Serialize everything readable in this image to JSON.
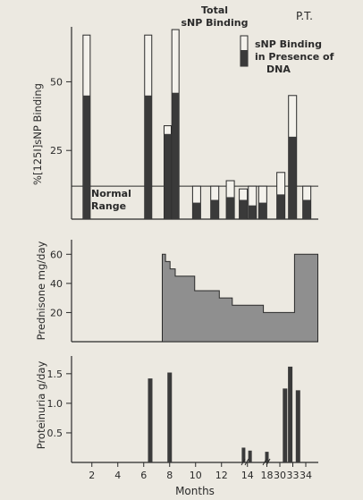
{
  "chart_data": [
    {
      "type": "bar",
      "corner_label": "P.T.",
      "ylabel": "%[125I]sNP Binding",
      "yticks": [
        25,
        50
      ],
      "ylim": [
        0,
        70
      ],
      "normal_range_label": "Normal Range",
      "normal_range_upper": 12,
      "legend": {
        "total": "Total sNP Binding",
        "dna": "sNP Binding in Presence of DNA"
      },
      "series": [
        {
          "name": "Total sNP Binding",
          "values": [
            67,
            67,
            34,
            69,
            12,
            12,
            14,
            11,
            12,
            12,
            17,
            45,
            12
          ]
        },
        {
          "name": "sNP Binding in Presence of DNA",
          "values": [
            45,
            45,
            31,
            46,
            6,
            7,
            8,
            7,
            5,
            6,
            9,
            30,
            7
          ]
        }
      ],
      "x": [
        0.75,
        5.5,
        7.0,
        7.6,
        9.2,
        10.6,
        11.8,
        12.8,
        13.5,
        14.3,
        15.7,
        16.6,
        17.7
      ]
    },
    {
      "type": "area",
      "ylabel": "Prednisone mg/day",
      "yticks": [
        20,
        40,
        60
      ],
      "ylim": [
        0,
        70
      ],
      "x": [
        7.0,
        7.25,
        7.6,
        8.0,
        8.5,
        9.5,
        10.9,
        11.4,
        12.4,
        13.3,
        14.6,
        14.8,
        16.8,
        17.2,
        18.3
      ],
      "values": [
        60,
        55,
        50,
        45,
        45,
        35,
        35,
        30,
        25,
        25,
        25,
        20,
        20,
        60,
        60
      ]
    },
    {
      "type": "bar",
      "ylabel": "Proteinuria g/day",
      "xlabel": "Months",
      "xticks": [
        "2",
        "4",
        "6",
        "8",
        "10",
        "12",
        "14",
        "18",
        "30",
        "33",
        "34"
      ],
      "yticks": [
        "0.5",
        "1.0",
        "1.5"
      ],
      "ylim": [
        0,
        1.8
      ],
      "x": [
        6.0,
        7.5,
        13.2,
        13.7,
        15.0,
        16.4,
        16.8,
        17.4
      ],
      "values": [
        1.42,
        1.52,
        0.25,
        0.2,
        0.18,
        1.25,
        1.62,
        1.22
      ]
    }
  ]
}
